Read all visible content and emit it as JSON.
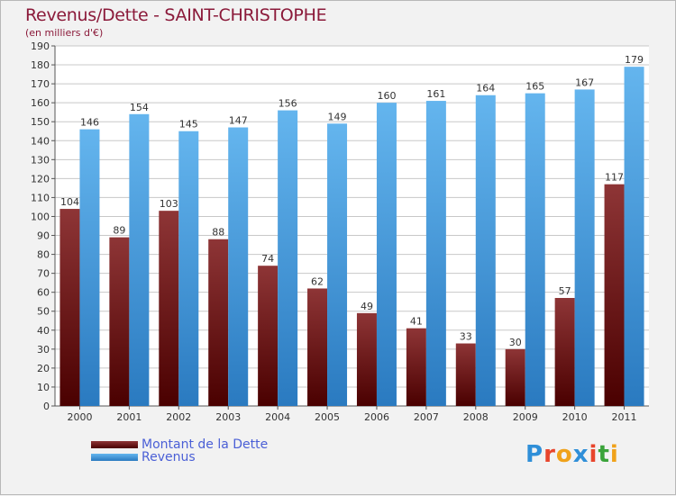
{
  "title": "Revenus/Dette - SAINT-CHRISTOPHE",
  "subtitle": "(en milliers d'€)",
  "logo": {
    "text": "Proxiti",
    "letter_colors": [
      "#2f8fd8",
      "#e8452c",
      "#f0a21a",
      "#2f8fd8",
      "#e8452c",
      "#3aa33a",
      "#f0a21a"
    ]
  },
  "colors": {
    "background": "#f2f2f2",
    "plot_background": "#ffffff",
    "grid": "#c8c8c8",
    "debt_top": "#8e3536",
    "debt_bottom": "#4a0000",
    "revenue_top": "#64b5ee",
    "revenue_bottom": "#2a7ac0",
    "title": "#8b1a3a",
    "legend_text": "#4a5fd6"
  },
  "legend": {
    "items": [
      {
        "label": "Montant de la Dette"
      },
      {
        "label": "Revenus"
      }
    ]
  },
  "chart_data": {
    "type": "bar",
    "title": "Revenus/Dette - SAINT-CHRISTOPHE",
    "subtitle": "(en milliers d'€)",
    "xlabel": "",
    "ylabel": "",
    "categories": [
      "2000",
      "2001",
      "2002",
      "2003",
      "2004",
      "2005",
      "2006",
      "2007",
      "2008",
      "2009",
      "2010",
      "2011"
    ],
    "series": [
      {
        "name": "Montant de la Dette",
        "values": [
          104,
          89,
          103,
          88,
          74,
          62,
          49,
          41,
          33,
          30,
          57,
          117
        ]
      },
      {
        "name": "Revenus",
        "values": [
          146,
          154,
          145,
          147,
          156,
          149,
          160,
          161,
          164,
          165,
          167,
          179
        ]
      }
    ],
    "ylim": [
      0,
      190
    ],
    "yticks": [
      0,
      10,
      20,
      30,
      40,
      50,
      60,
      70,
      80,
      90,
      100,
      110,
      120,
      130,
      140,
      150,
      160,
      170,
      180,
      190
    ],
    "grid": true,
    "legend_position": "bottom-left"
  }
}
